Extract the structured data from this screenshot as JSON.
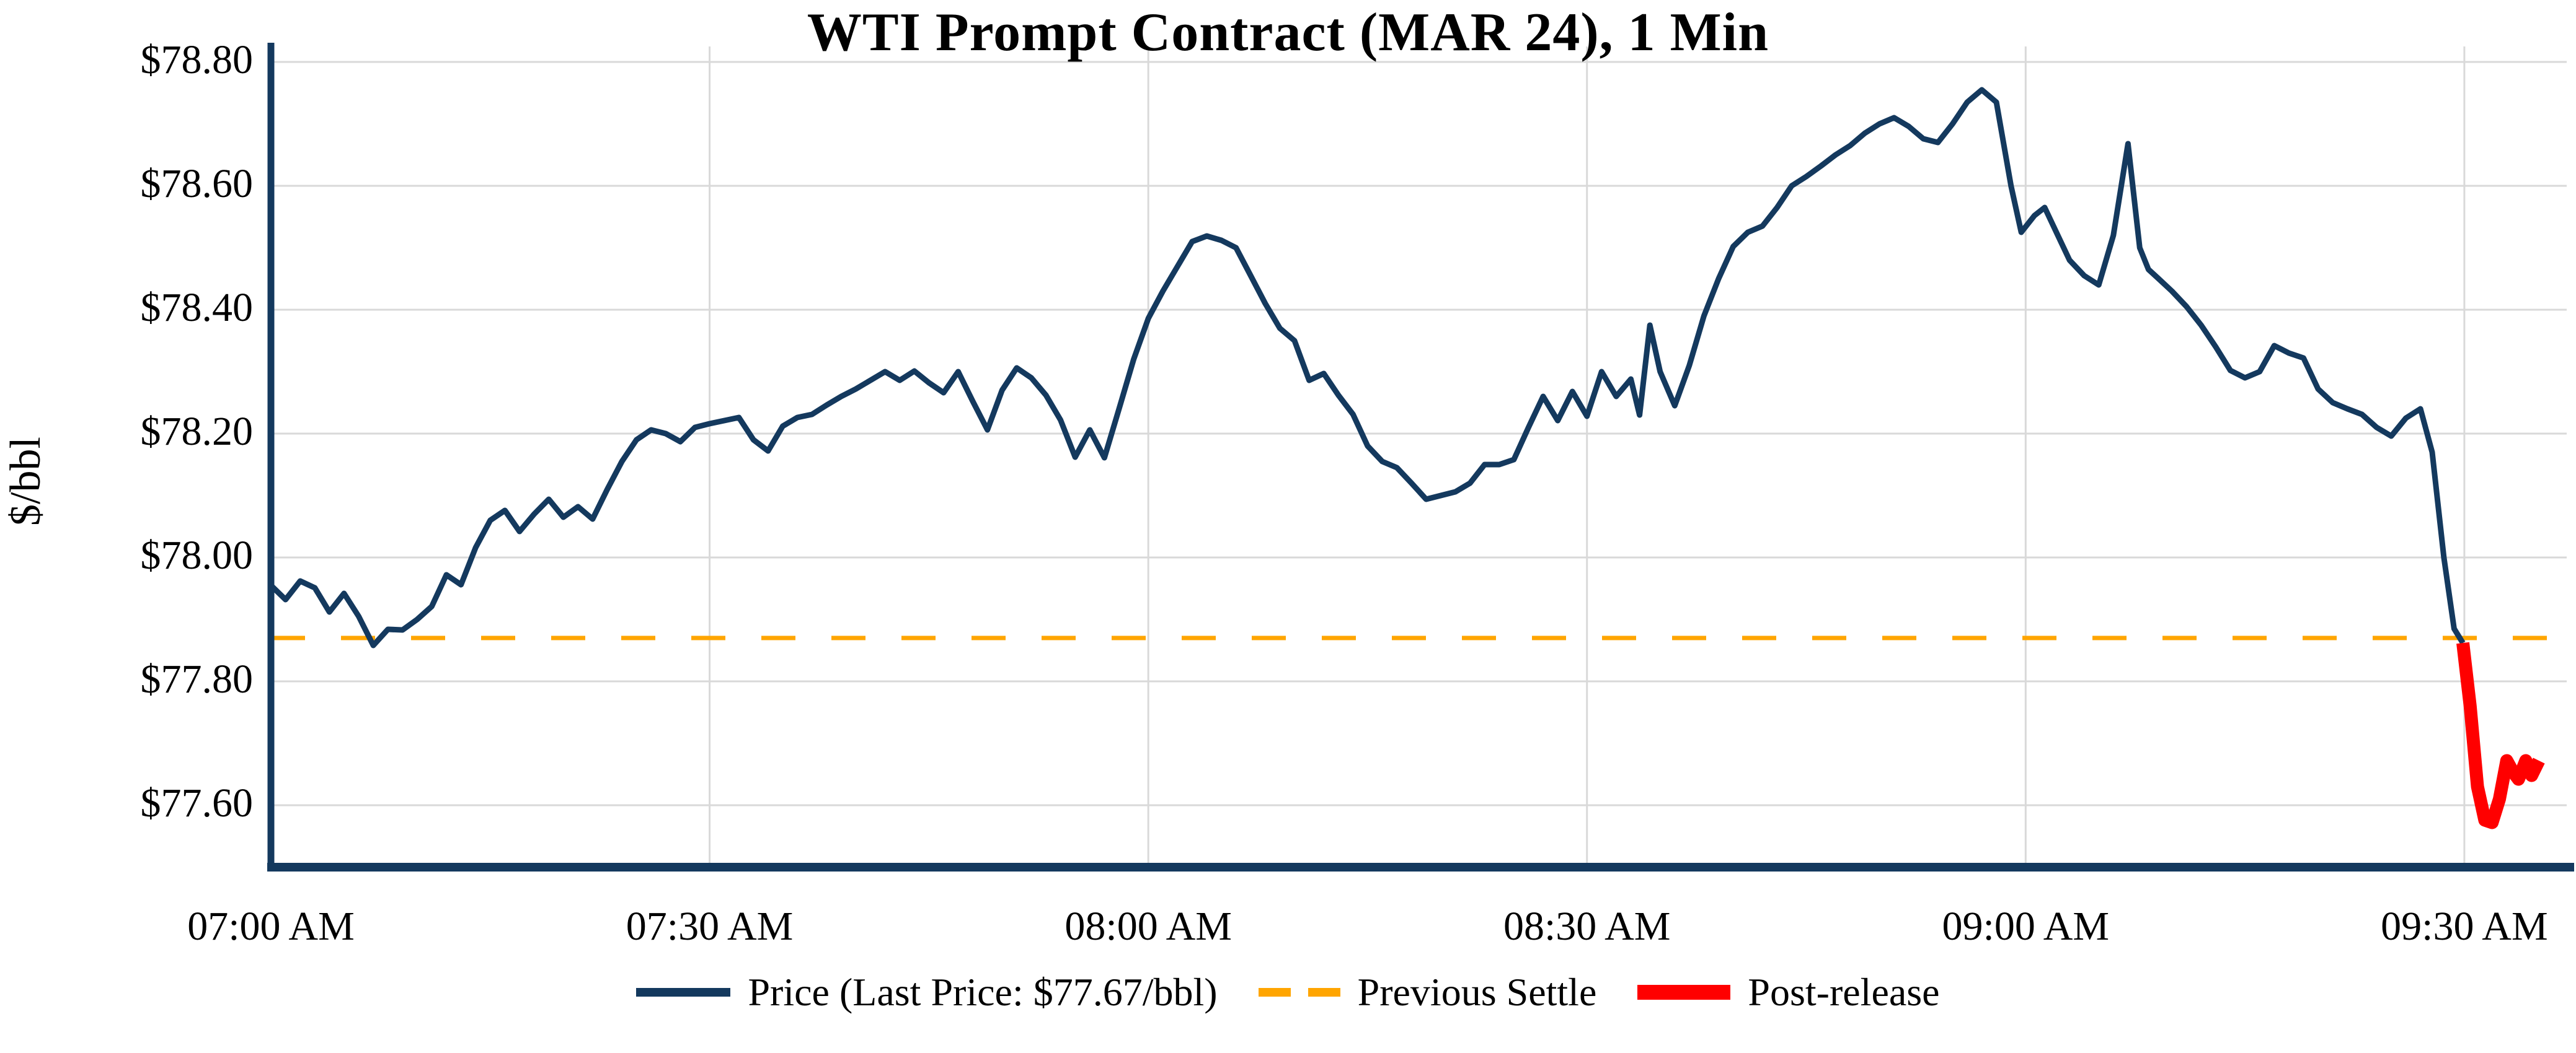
{
  "header": {
    "title": "WTI Prompt Contract (MAR 24), 1 Min"
  },
  "colors": {
    "price_line": "#14395E",
    "post_release_line": "#FF0000",
    "previous_settle_line": "#FFA500",
    "grid": "#D9D9D9",
    "axis": "#14395E",
    "text": "#000000",
    "background": "#FFFFFF"
  },
  "chart_data": {
    "type": "line",
    "title": "WTI Prompt Contract (MAR 24), 1 Min",
    "xlabel": "",
    "ylabel": "$/bbl",
    "grid": true,
    "legend_position": "bottom-center",
    "x_unit": "minutes after 07:00 AM",
    "x_range": [
      0,
      157
    ],
    "y_range": [
      77.5,
      78.825
    ],
    "x_ticks": [
      {
        "m": 0,
        "label": "07:00 AM"
      },
      {
        "m": 30,
        "label": "07:30 AM"
      },
      {
        "m": 60,
        "label": "08:00 AM"
      },
      {
        "m": 90,
        "label": "08:30 AM"
      },
      {
        "m": 120,
        "label": "09:00 AM"
      },
      {
        "m": 150,
        "label": "09:30 AM"
      }
    ],
    "y_ticks": [
      {
        "v": 78.8,
        "label": "$78.80"
      },
      {
        "v": 78.6,
        "label": "$78.60"
      },
      {
        "v": 78.4,
        "label": "$78.40"
      },
      {
        "v": 78.2,
        "label": "$78.20"
      },
      {
        "v": 78.0,
        "label": "$78.00"
      },
      {
        "v": 77.8,
        "label": "$77.80"
      },
      {
        "v": 77.6,
        "label": "$77.60"
      }
    ],
    "previous_settle": 77.87,
    "last_price": 77.67,
    "series": [
      {
        "name": "Price",
        "color": "#14395E",
        "width": 9,
        "points": [
          [
            0,
            77.955
          ],
          [
            1,
            77.932
          ],
          [
            2,
            77.962
          ],
          [
            3,
            77.951
          ],
          [
            4,
            77.912
          ],
          [
            5,
            77.942
          ],
          [
            6,
            77.905
          ],
          [
            7,
            77.858
          ],
          [
            8,
            77.884
          ],
          [
            9,
            77.883
          ],
          [
            10,
            77.9
          ],
          [
            11,
            77.921
          ],
          [
            12,
            77.972
          ],
          [
            13,
            77.956
          ],
          [
            14,
            78.016
          ],
          [
            15,
            78.06
          ],
          [
            16,
            78.076
          ],
          [
            17,
            78.042
          ],
          [
            18,
            78.07
          ],
          [
            19,
            78.094
          ],
          [
            20,
            78.065
          ],
          [
            21,
            78.082
          ],
          [
            22,
            78.062
          ],
          [
            23,
            78.11
          ],
          [
            24,
            78.155
          ],
          [
            25,
            78.19
          ],
          [
            26,
            78.206
          ],
          [
            27,
            78.2
          ],
          [
            28,
            78.187
          ],
          [
            29,
            78.21
          ],
          [
            30,
            78.216
          ],
          [
            31,
            78.221
          ],
          [
            32,
            78.226
          ],
          [
            33,
            78.19
          ],
          [
            34,
            78.172
          ],
          [
            35,
            78.212
          ],
          [
            36,
            78.226
          ],
          [
            37,
            78.231
          ],
          [
            38,
            78.246
          ],
          [
            39,
            78.26
          ],
          [
            40,
            78.272
          ],
          [
            41,
            78.286
          ],
          [
            42,
            78.3
          ],
          [
            43,
            78.286
          ],
          [
            44,
            78.301
          ],
          [
            45,
            78.282
          ],
          [
            46,
            78.266
          ],
          [
            47,
            78.3
          ],
          [
            48,
            78.252
          ],
          [
            49,
            78.206
          ],
          [
            50,
            78.27
          ],
          [
            51,
            78.306
          ],
          [
            52,
            78.29
          ],
          [
            53,
            78.262
          ],
          [
            54,
            78.222
          ],
          [
            55,
            78.162
          ],
          [
            56,
            78.206
          ],
          [
            57,
            78.161
          ],
          [
            58,
            78.24
          ],
          [
            59,
            78.32
          ],
          [
            60,
            78.386
          ],
          [
            61,
            78.43
          ],
          [
            62,
            78.47
          ],
          [
            63,
            78.51
          ],
          [
            64,
            78.519
          ],
          [
            65,
            78.512
          ],
          [
            66,
            78.5
          ],
          [
            67,
            78.455
          ],
          [
            68,
            78.41
          ],
          [
            69,
            78.37
          ],
          [
            70,
            78.35
          ],
          [
            71,
            78.286
          ],
          [
            72,
            78.297
          ],
          [
            73,
            78.262
          ],
          [
            74,
            78.231
          ],
          [
            75,
            78.18
          ],
          [
            76,
            78.155
          ],
          [
            77,
            78.145
          ],
          [
            78,
            78.12
          ],
          [
            79,
            78.094
          ],
          [
            80,
            78.1
          ],
          [
            81,
            78.106
          ],
          [
            82,
            78.12
          ],
          [
            83,
            78.15
          ],
          [
            84,
            78.15
          ],
          [
            85,
            78.158
          ],
          [
            86,
            78.21
          ],
          [
            87,
            78.26
          ],
          [
            88,
            78.221
          ],
          [
            89,
            78.268
          ],
          [
            90,
            78.228
          ],
          [
            91,
            78.3
          ],
          [
            92,
            78.26
          ],
          [
            93,
            78.288
          ],
          [
            93.6,
            78.23
          ],
          [
            94.3,
            78.375
          ],
          [
            95,
            78.3
          ],
          [
            96,
            78.245
          ],
          [
            97,
            78.31
          ],
          [
            98,
            78.39
          ],
          [
            99,
            78.45
          ],
          [
            100,
            78.502
          ],
          [
            101,
            78.525
          ],
          [
            102,
            78.535
          ],
          [
            103,
            78.565
          ],
          [
            104,
            78.6
          ],
          [
            105,
            78.615
          ],
          [
            106,
            78.632
          ],
          [
            107,
            78.65
          ],
          [
            108,
            78.665
          ],
          [
            109,
            78.685
          ],
          [
            110,
            78.7
          ],
          [
            111,
            78.71
          ],
          [
            112,
            78.696
          ],
          [
            113,
            78.676
          ],
          [
            114,
            78.67
          ],
          [
            115,
            78.7
          ],
          [
            116,
            78.735
          ],
          [
            117,
            78.755
          ],
          [
            118,
            78.735
          ],
          [
            119,
            78.6
          ],
          [
            119.7,
            78.525
          ],
          [
            120.6,
            78.552
          ],
          [
            121.3,
            78.565
          ],
          [
            122,
            78.53
          ],
          [
            123,
            78.48
          ],
          [
            124,
            78.455
          ],
          [
            125,
            78.44
          ],
          [
            126,
            78.52
          ],
          [
            127,
            78.668
          ],
          [
            127.8,
            78.5
          ],
          [
            128.4,
            78.465
          ],
          [
            129,
            78.452
          ],
          [
            130,
            78.43
          ],
          [
            131,
            78.405
          ],
          [
            132,
            78.375
          ],
          [
            133,
            78.34
          ],
          [
            134,
            78.302
          ],
          [
            135,
            78.29
          ],
          [
            136,
            78.3
          ],
          [
            137,
            78.342
          ],
          [
            138,
            78.33
          ],
          [
            139,
            78.322
          ],
          [
            140,
            78.272
          ],
          [
            141,
            78.25
          ],
          [
            142,
            78.24
          ],
          [
            143,
            78.231
          ],
          [
            144,
            78.21
          ],
          [
            145,
            78.196
          ],
          [
            146,
            78.225
          ],
          [
            147,
            78.24
          ],
          [
            147.8,
            78.17
          ],
          [
            148.6,
            78.0
          ],
          [
            149.3,
            77.885
          ],
          [
            149.9,
            77.862
          ]
        ]
      },
      {
        "name": "Post-release",
        "color": "#FF0000",
        "width": 21,
        "points": [
          [
            149.9,
            77.862
          ],
          [
            150.4,
            77.76
          ],
          [
            150.9,
            77.63
          ],
          [
            151.4,
            77.576
          ],
          [
            151.9,
            77.572
          ],
          [
            152.4,
            77.61
          ],
          [
            152.9,
            77.672
          ],
          [
            153.3,
            77.655
          ],
          [
            153.7,
            77.642
          ],
          [
            154.2,
            77.672
          ],
          [
            154.6,
            77.648
          ],
          [
            155.1,
            77.672
          ]
        ]
      }
    ],
    "reference_lines": [
      {
        "name": "Previous Settle",
        "value": 77.87,
        "color": "#FFA500",
        "style": "dashed",
        "width": 7
      }
    ]
  },
  "legend": {
    "items": [
      {
        "id": "price",
        "swatch": "line",
        "color": "#14395E",
        "label": "Price (Last Price: $77.67/bbl)"
      },
      {
        "id": "previous-settle",
        "swatch": "dashes",
        "color": "#FFA500",
        "label": "Previous Settle"
      },
      {
        "id": "post-release",
        "swatch": "thick-line",
        "color": "#FF0000",
        "label": "Post-release"
      }
    ]
  }
}
